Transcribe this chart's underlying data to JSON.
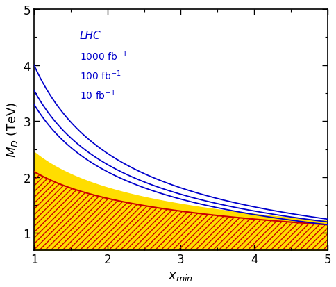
{
  "xlim": [
    1,
    5
  ],
  "ylim": [
    0.7,
    5.0
  ],
  "xlabel": "$x_{min}$",
  "ylabel": "$M_D$ (TeV)",
  "lhc_label": "LHC",
  "lhc_luminosities": [
    "1000 fb$^{-1}$",
    "100 fb$^{-1}$",
    "10 fb$^{-1}$"
  ],
  "blue_color": "#0000cc",
  "red_color": "#cc0000",
  "yellow_color": "#ffdd00",
  "background_color": "#ffffff",
  "xticks": [
    1,
    2,
    3,
    4,
    5
  ],
  "yticks": [
    1,
    2,
    3,
    4,
    5
  ],
  "lhc_1000_y1": 4.0,
  "lhc_1000_y5": 1.25,
  "lhc_100_y1": 3.55,
  "lhc_100_y5": 1.2,
  "lhc_10_y1": 3.3,
  "lhc_10_y5": 1.15,
  "red_curve_y1": 2.1,
  "red_curve_y5": 1.15,
  "yellow_top_y1": 2.45,
  "yellow_top_y5": 1.22
}
